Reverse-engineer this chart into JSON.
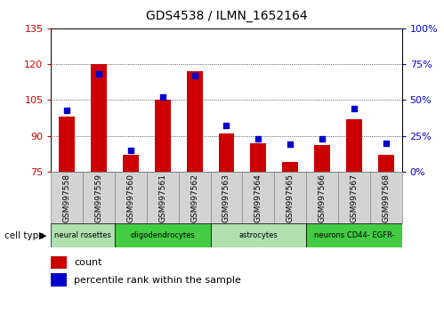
{
  "title": "GDS4538 / ILMN_1652164",
  "samples": [
    "GSM997558",
    "GSM997559",
    "GSM997560",
    "GSM997561",
    "GSM997562",
    "GSM997563",
    "GSM997564",
    "GSM997565",
    "GSM997566",
    "GSM997567",
    "GSM997568"
  ],
  "counts": [
    98,
    120,
    82,
    105,
    117,
    91,
    87,
    79,
    86,
    97,
    82
  ],
  "percentile_ranks": [
    43,
    68,
    15,
    52,
    67,
    32,
    23,
    19,
    23,
    44,
    20
  ],
  "cell_types": [
    {
      "label": "neural rosettes",
      "start": 0,
      "end": 2,
      "color": "#b0e0b0"
    },
    {
      "label": "oligodendrocytes",
      "start": 2,
      "end": 5,
      "color": "#44cc44"
    },
    {
      "label": "astrocytes",
      "start": 5,
      "end": 8,
      "color": "#b0e0b0"
    },
    {
      "label": "neurons CD44- EGFR-",
      "start": 8,
      "end": 11,
      "color": "#44cc44"
    }
  ],
  "ylim_left": [
    75,
    135
  ],
  "yticks_left": [
    75,
    90,
    105,
    120,
    135
  ],
  "ylim_right": [
    0,
    100
  ],
  "yticks_right": [
    0,
    25,
    50,
    75,
    100
  ],
  "bar_color": "#cc0000",
  "dot_color": "#0000cc",
  "bar_width": 0.5,
  "dot_size": 25,
  "bg_color": "#ffffff",
  "tick_label_color_left": "#cc0000",
  "tick_label_color_right": "#0000cc",
  "legend_count_label": "count",
  "legend_pct_label": "percentile rank within the sample",
  "cell_type_label": "cell type",
  "xtick_bg_color": "#d3d3d3",
  "xtick_border_color": "#888888"
}
